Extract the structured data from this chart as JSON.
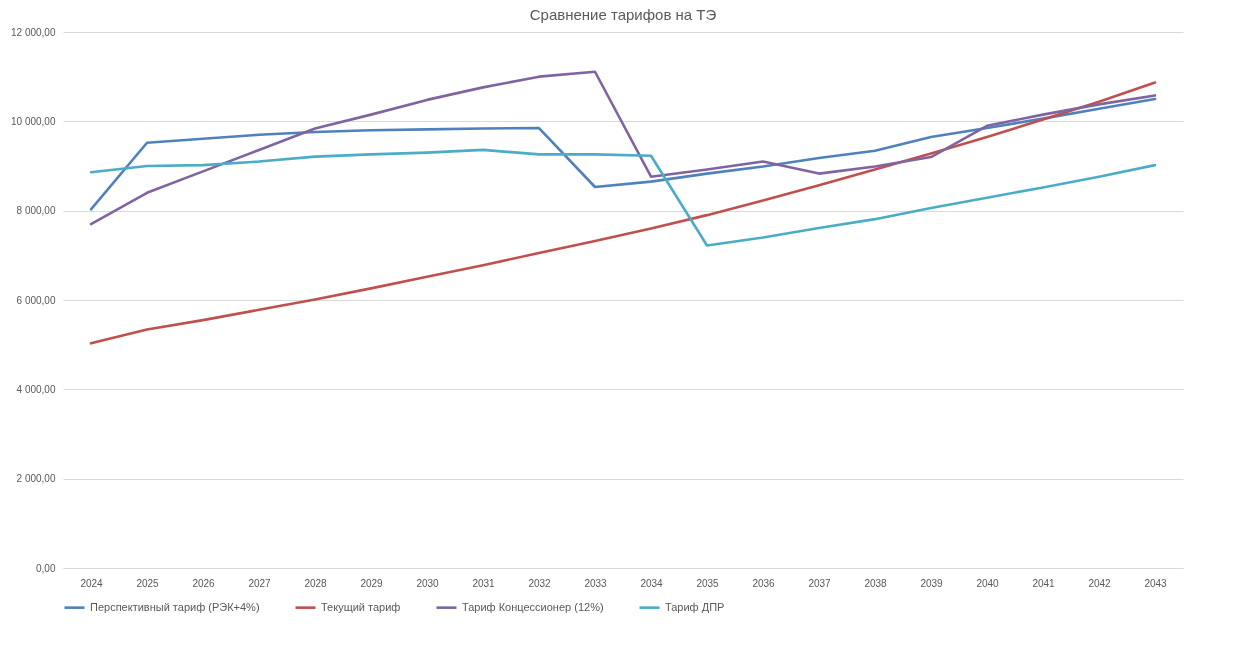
{
  "chart_data": {
    "type": "line",
    "title": "Сравнение тарифов на ТЭ",
    "categories": [
      "2024",
      "2025",
      "2026",
      "2027",
      "2028",
      "2029",
      "2030",
      "2031",
      "2032",
      "2033",
      "2034",
      "2035",
      "2036",
      "2037",
      "2038",
      "2039",
      "2040",
      "2041",
      "2042",
      "2043"
    ],
    "series": [
      {
        "name": "Перспективный тариф (РЭК+4%)",
        "color": "#4f81bd",
        "values": [
          8030,
          9520,
          9610,
          9700,
          9760,
          9800,
          9820,
          9840,
          9850,
          8530,
          8650,
          8830,
          8990,
          9180,
          9340,
          9650,
          9850,
          10060,
          10280,
          10500
        ]
      },
      {
        "name": "Текущий тариф",
        "color": "#c0504d",
        "values": [
          5030,
          5340,
          5550,
          5780,
          6010,
          6260,
          6520,
          6780,
          7050,
          7320,
          7600,
          7900,
          8230,
          8570,
          8920,
          9280,
          9650,
          10040,
          10440,
          10870
        ]
      },
      {
        "name": "Тариф Концессионер (12%)",
        "color": "#8064a2",
        "values": [
          7700,
          8400,
          8880,
          9360,
          9840,
          10150,
          10480,
          10760,
          11000,
          11110,
          8760,
          8920,
          9100,
          8830,
          8990,
          9200,
          9900,
          10150,
          10380,
          10580
        ]
      },
      {
        "name": "Тариф  ДПР",
        "color": "#4bacc6",
        "values": [
          8860,
          9000,
          9020,
          9100,
          9210,
          9260,
          9300,
          9360,
          9260,
          9260,
          9230,
          7220,
          7400,
          7610,
          7810,
          8060,
          8290,
          8520,
          8760,
          9020
        ]
      }
    ],
    "ylim": [
      0,
      12000
    ],
    "yticks": [
      {
        "value": 0,
        "label": "0,00"
      },
      {
        "value": 2000,
        "label": "2 000,00"
      },
      {
        "value": 4000,
        "label": "4 000,00"
      },
      {
        "value": 6000,
        "label": "6 000,00"
      },
      {
        "value": 8000,
        "label": "8 000,00"
      },
      {
        "value": 10000,
        "label": "10 000,00"
      },
      {
        "value": 12000,
        "label": "12 000,00"
      }
    ],
    "grid": "y",
    "legend": "bottom",
    "marker": "none",
    "line_style": "solid"
  }
}
